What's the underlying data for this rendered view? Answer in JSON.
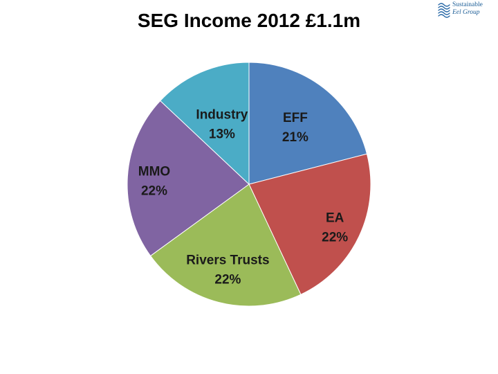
{
  "logo": {
    "line1": "Sustainable",
    "line2": "Eel Group"
  },
  "chart_data": {
    "type": "pie",
    "title": "SEG Income 2012 £1.1m",
    "slices": [
      {
        "label": "EFF",
        "value": 21,
        "value_label": "21%",
        "color": "#4f81bd"
      },
      {
        "label": "EA",
        "value": 22,
        "value_label": "22%",
        "color": "#c0504d"
      },
      {
        "label": "Rivers Trusts",
        "value": 22,
        "value_label": "22%",
        "color": "#9bbb59"
      },
      {
        "label": "MMO",
        "value": 22,
        "value_label": "22%",
        "color": "#8064a2"
      },
      {
        "label": "Industry",
        "value": 13,
        "value_label": "13%",
        "color": "#4bacc6"
      }
    ],
    "start": "12 o'clock",
    "direction": "clockwise",
    "legend": "none"
  }
}
